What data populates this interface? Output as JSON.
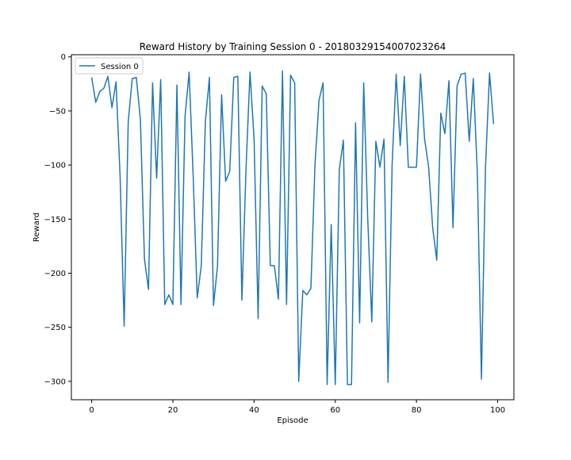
{
  "chart_data": {
    "type": "line",
    "title": "Reward History by Training Session 0 - 20180329154007023264",
    "xlabel": "Episode",
    "ylabel": "Reward",
    "xlim": [
      -5,
      104
    ],
    "ylim": [
      -317,
      2
    ],
    "xticks": [
      0,
      20,
      40,
      60,
      80,
      100
    ],
    "yticks": [
      0,
      -50,
      -100,
      -150,
      -200,
      -250,
      -300
    ],
    "grid": false,
    "legend_position": "upper-left",
    "series": [
      {
        "name": "Session 0",
        "color": "#1f77b4",
        "x": [
          0,
          1,
          2,
          3,
          4,
          5,
          6,
          7,
          8,
          9,
          10,
          11,
          12,
          13,
          14,
          15,
          16,
          17,
          18,
          19,
          20,
          21,
          22,
          23,
          24,
          25,
          26,
          27,
          28,
          29,
          30,
          31,
          32,
          33,
          34,
          35,
          36,
          37,
          38,
          39,
          40,
          41,
          42,
          43,
          44,
          45,
          46,
          47,
          48,
          49,
          50,
          51,
          52,
          53,
          54,
          55,
          56,
          57,
          58,
          59,
          60,
          61,
          62,
          63,
          64,
          65,
          66,
          67,
          68,
          69,
          70,
          71,
          72,
          73,
          74,
          75,
          76,
          77,
          78,
          79,
          80,
          81,
          82,
          83,
          84,
          85,
          86,
          87,
          88,
          89,
          90,
          91,
          92,
          93,
          94,
          95,
          96,
          97,
          98,
          99
        ],
        "values": [
          -19,
          -42,
          -32,
          -29,
          -18,
          -47,
          -23,
          -110,
          -249,
          -60,
          -20,
          -19,
          -58,
          -187,
          -215,
          -24,
          -112,
          -21,
          -229,
          -220,
          -229,
          -26,
          -229,
          -55,
          -14,
          -110,
          -223,
          -193,
          -60,
          -19,
          -230,
          -193,
          -35,
          -115,
          -106,
          -19,
          -18,
          -225,
          -105,
          -14,
          -76,
          -242,
          -27,
          -34,
          -193,
          -193,
          -224,
          -13,
          -229,
          -17,
          -24,
          -300,
          -216,
          -220,
          -214,
          -100,
          -40,
          -24,
          -303,
          -155,
          -303,
          -104,
          -77,
          -303,
          -303,
          -61,
          -246,
          -24,
          -150,
          -245,
          -78,
          -102,
          -76,
          -301,
          -100,
          -16,
          -82,
          -18,
          -102,
          -102,
          -102,
          -16,
          -76,
          -102,
          -158,
          -188,
          -52,
          -71,
          -22,
          -158,
          -27,
          -16,
          -15,
          -78,
          -20,
          -108,
          -298,
          -102,
          -15,
          -62
        ]
      }
    ]
  }
}
